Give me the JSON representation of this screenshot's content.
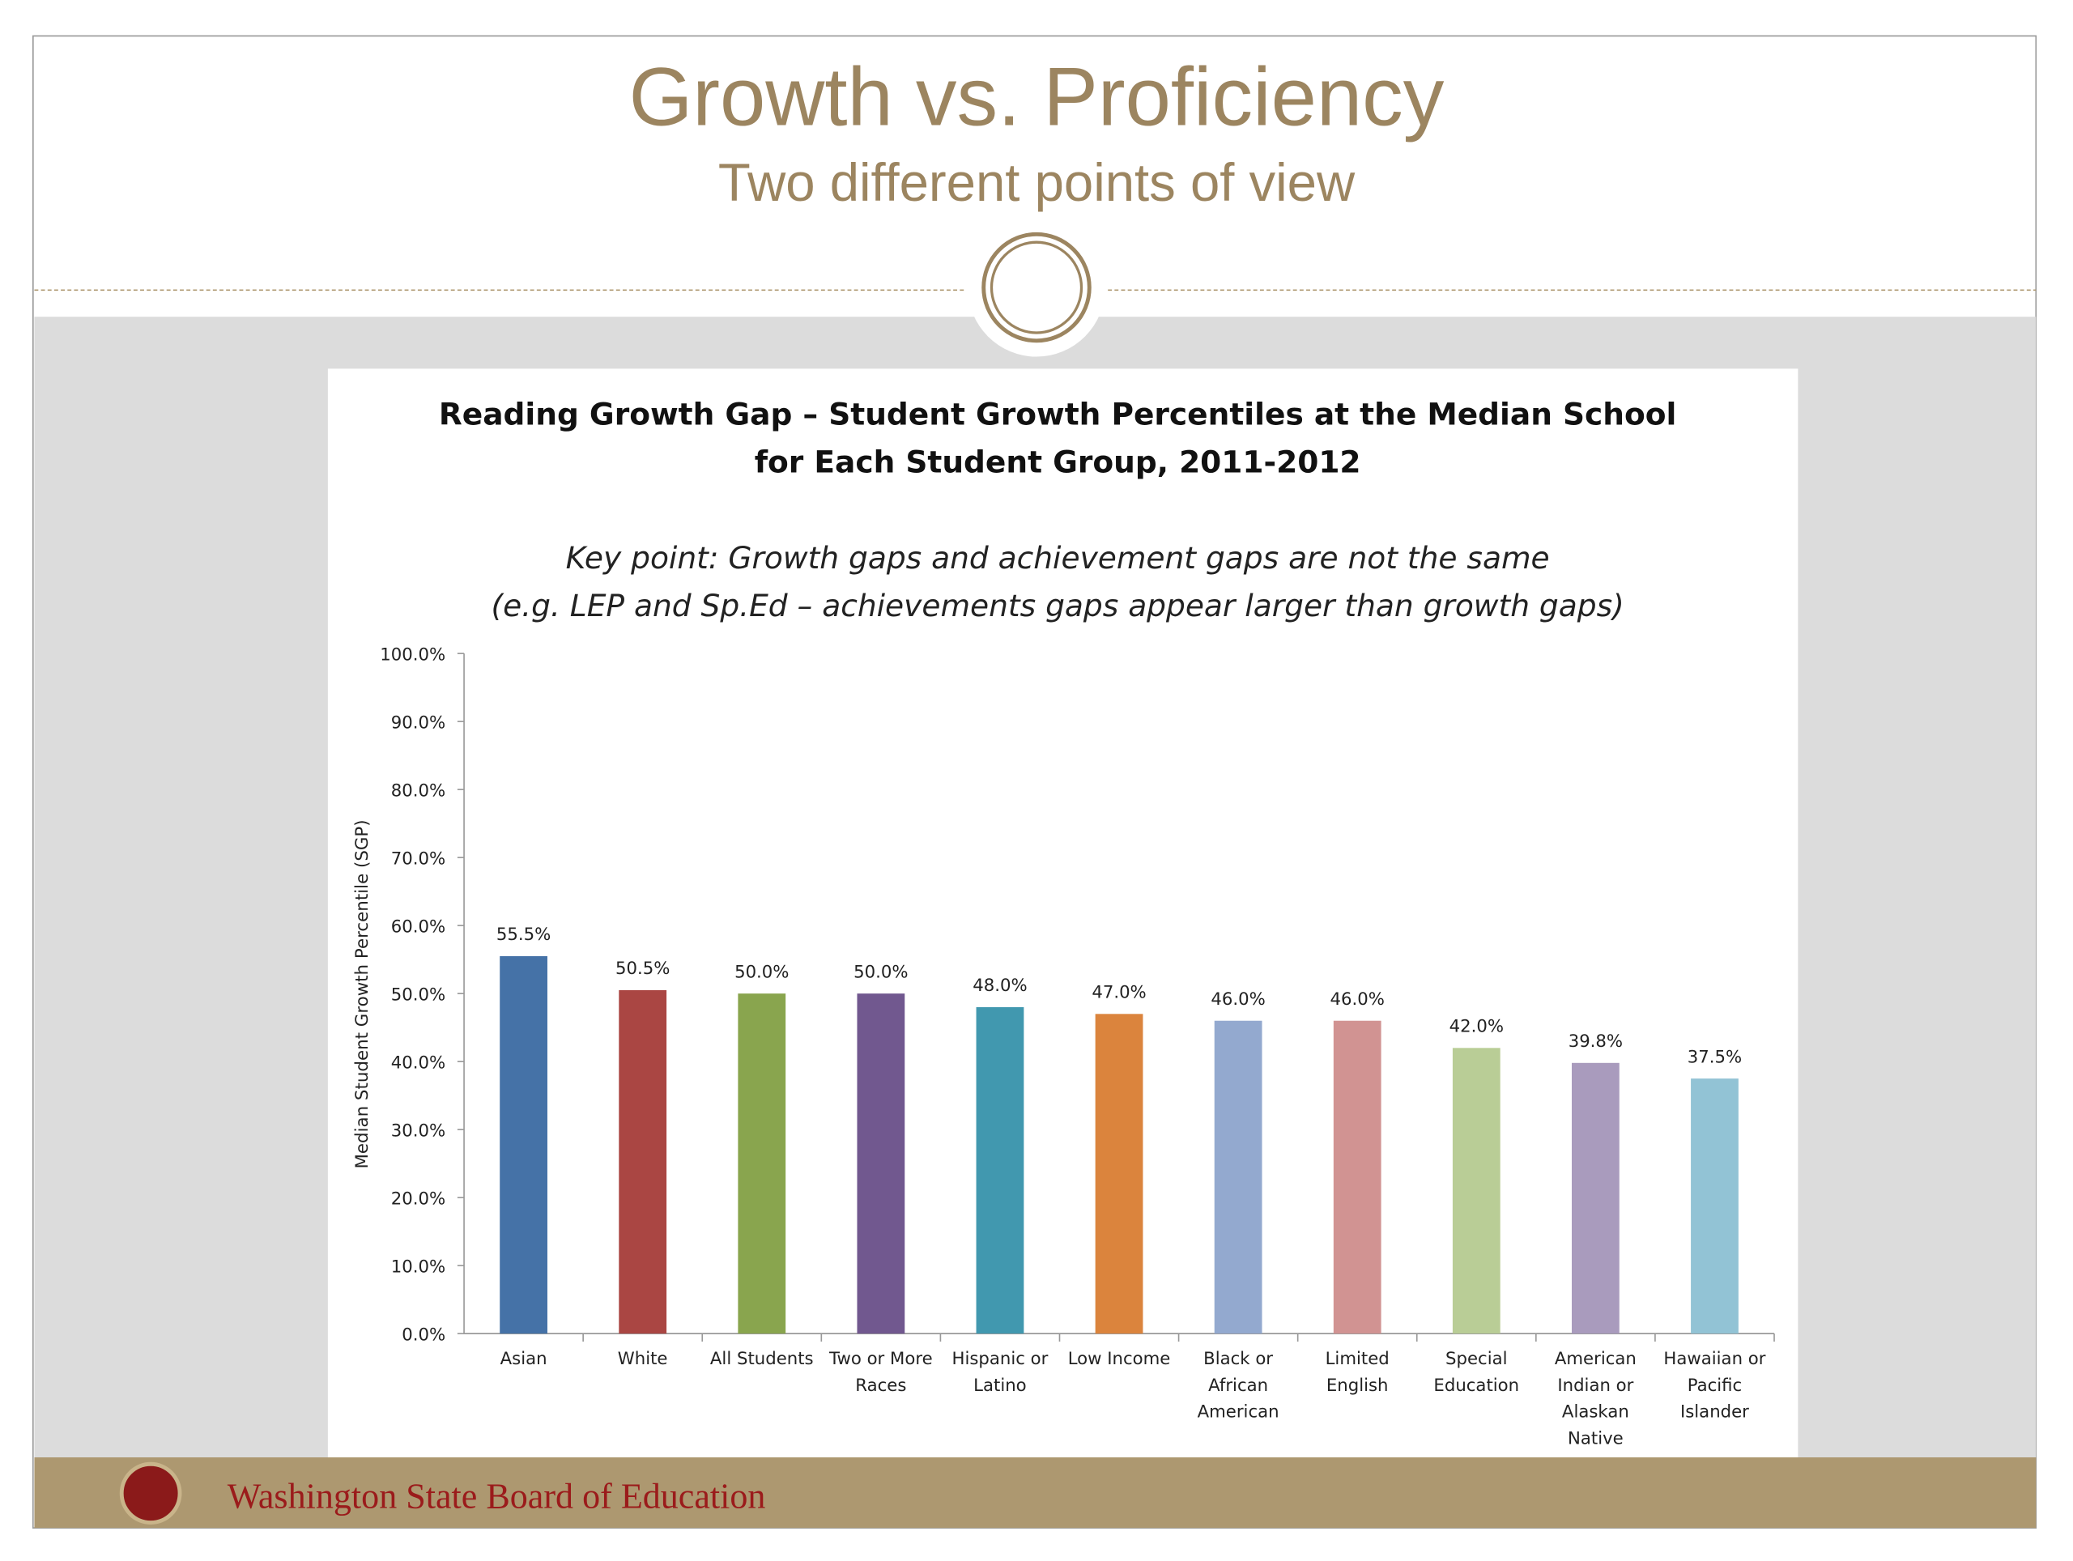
{
  "slide": {
    "title": "Growth vs. Proficiency",
    "subtitle": "Two different points of view",
    "footer": "Washington State Board of Education"
  },
  "chart_data": {
    "type": "bar",
    "title": [
      "Reading Growth Gap – Student Growth Percentiles at the Median School",
      "for Each Student Group, 2011-2012"
    ],
    "annotations": [
      "Key point: Growth gaps and achievement gaps are not the same",
      "(e.g. LEP and Sp.Ed – achievements gaps appear larger than growth gaps)"
    ],
    "y_label": "Median Student Growth Percentile (SGP)",
    "categories": [
      "Asian",
      "White",
      "All Students",
      "Two or More Races",
      "Hispanic or Latino",
      "Low Income",
      "Black or African American",
      "Limited English",
      "Special Education",
      "American Indian or Alaskan Native",
      "Hawaiian or Pacific Islander"
    ],
    "values": [
      55.5,
      50.5,
      50.0,
      50.0,
      48.0,
      47.0,
      46.0,
      46.0,
      42.0,
      39.8,
      37.5
    ],
    "value_labels": [
      "55.5%",
      "50.5%",
      "50.0%",
      "50.0%",
      "48.0%",
      "47.0%",
      "46.0%",
      "46.0%",
      "42.0%",
      "39.8%",
      "37.5%"
    ],
    "colors": [
      "#4572a7",
      "#aa4643",
      "#89a54e",
      "#71588f",
      "#4198af",
      "#db843d",
      "#93a9cf",
      "#d19392",
      "#b9cd96",
      "#a99bbd",
      "#92c3d5"
    ],
    "ylim": [
      0,
      100
    ],
    "yticks": [
      {
        "value": 0,
        "label": "0.0%"
      },
      {
        "value": 10,
        "label": "10.0%"
      },
      {
        "value": 20,
        "label": "20.0%"
      },
      {
        "value": 30,
        "label": "30.0%"
      },
      {
        "value": 40,
        "label": "40.0%"
      },
      {
        "value": 50,
        "label": "50.0%"
      },
      {
        "value": 60,
        "label": "60.0%"
      },
      {
        "value": 70,
        "label": "70.0%"
      },
      {
        "value": 80,
        "label": "80.0%"
      },
      {
        "value": 90,
        "label": "90.0%"
      },
      {
        "value": 100,
        "label": "100.0%"
      }
    ],
    "grid": false
  }
}
